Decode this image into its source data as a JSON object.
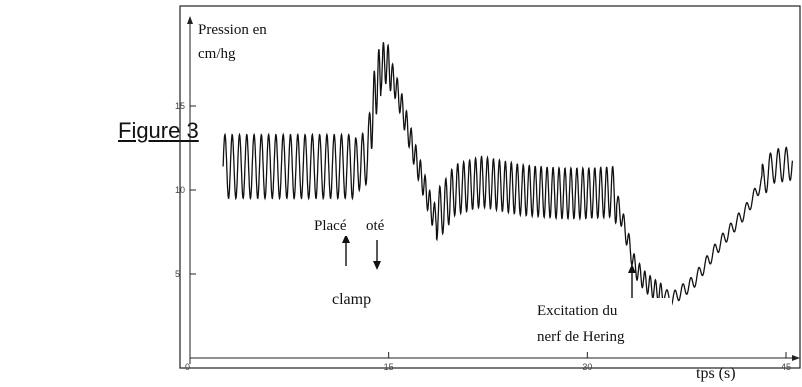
{
  "figure_label": "Figure 3",
  "chart_data": {
    "type": "line",
    "title": "",
    "ylabel": "Pression en cm/hg",
    "ylabel_lines": [
      "Pression en",
      "cm/hg"
    ],
    "xlabel": "tps (s)",
    "xlim": [
      0,
      45
    ],
    "ylim": [
      0,
      20
    ],
    "x_ticks": [
      {
        "value": 0,
        "label": "0"
      },
      {
        "value": 15,
        "label": "15"
      },
      {
        "value": 30,
        "label": "30"
      },
      {
        "value": 45,
        "label": "45"
      }
    ],
    "y_ticks": [
      {
        "value": 5,
        "label": "5"
      },
      {
        "value": 10,
        "label": "10"
      },
      {
        "value": 15,
        "label": "15"
      }
    ],
    "grid": false,
    "series": [
      {
        "color": "#111111",
        "segments": [
          {
            "x0": 2.5,
            "x1": 12.5,
            "y_mid": 11.4,
            "amp": 1.9,
            "period": 0.55
          },
          {
            "x0": 12.5,
            "x1": 13.6,
            "y_mid": 11.6,
            "amp": 1.6,
            "period": 0.5
          },
          {
            "x0": 13.6,
            "x1": 14.4,
            "y_mid": 15.8,
            "amp": 1.7,
            "period": 0.35
          },
          {
            "x0": 14.4,
            "x1": 15.2,
            "y_mid": 17.2,
            "amp": 1.2,
            "period": 0.35
          },
          {
            "x0": 15.2,
            "x1": 18.6,
            "y_mid": 10.0,
            "amp": 0.8,
            "period": 0.35
          },
          {
            "x0": 18.6,
            "x1": 32.2,
            "y_mid": 9.7,
            "amp": 1.5,
            "period": 0.45
          },
          {
            "x0": 32.2,
            "x1": 35.8,
            "y_mid": 4.8,
            "amp": 0.6,
            "period": 0.4
          },
          {
            "x0": 35.8,
            "x1": 43.2,
            "y_mid": 7.5,
            "amp": 0.4,
            "period": 0.6
          },
          {
            "x0": 43.2,
            "x1": 45.5,
            "y_mid": 11.5,
            "amp": 1.0,
            "period": 0.6
          }
        ],
        "envelope": [
          [
            2.5,
            11.4
          ],
          [
            12.5,
            11.4
          ],
          [
            13.4,
            12.0
          ],
          [
            14.0,
            16.0
          ],
          [
            14.6,
            17.6
          ],
          [
            15.0,
            17.4
          ],
          [
            15.8,
            15.5
          ],
          [
            17.0,
            12.0
          ],
          [
            18.4,
            8.4
          ],
          [
            19.0,
            8.8
          ],
          [
            20.0,
            10.0
          ],
          [
            22.0,
            10.5
          ],
          [
            25.0,
            10.0
          ],
          [
            28.0,
            9.8
          ],
          [
            30.0,
            9.8
          ],
          [
            32.0,
            9.9
          ],
          [
            32.8,
            7.8
          ],
          [
            33.6,
            5.4
          ],
          [
            34.4,
            4.5
          ],
          [
            35.4,
            3.9
          ],
          [
            36.4,
            3.5
          ],
          [
            38.0,
            4.5
          ],
          [
            40.0,
            6.8
          ],
          [
            42.0,
            8.8
          ],
          [
            43.2,
            10.5
          ],
          [
            44.0,
            11.4
          ],
          [
            45.5,
            11.6
          ]
        ]
      }
    ],
    "annotations": [
      {
        "text": "Placé",
        "x": 12.0,
        "arrow": "up"
      },
      {
        "text": "oté",
        "x": 14.0,
        "arrow": "down"
      },
      {
        "text": "clamp"
      },
      {
        "text": "Excitation du",
        "x": 33.3,
        "arrow": "up"
      },
      {
        "text": "nerf de Hering"
      }
    ]
  }
}
